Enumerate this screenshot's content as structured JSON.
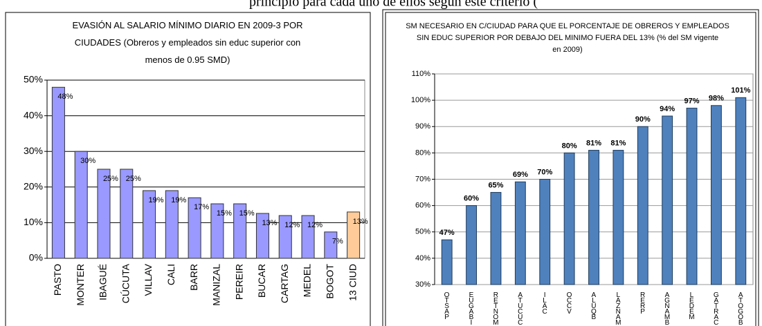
{
  "header_text": "principio para cada uno de ellos según este criterio (",
  "chart_data": [
    {
      "type": "bar",
      "title": "EVASIÓN AL SALARIO MÍNIMO DIARIO EN 2009-3  POR CIUDADES (Obreros y empleados sin educ superior con menos de 0.95 SMD)",
      "categories": [
        "PASTO",
        "MONTER",
        "IBAGUÉ",
        "CÚCUTA",
        "VILLAV",
        "CALI",
        "BARR",
        "MANIZAL",
        "PEREIR",
        "BUCAR",
        "CARTAG",
        "MEDEL",
        "BOGOT",
        "13 CIUD"
      ],
      "values": [
        48,
        30,
        25,
        25,
        19,
        19,
        17,
        15.3,
        15.3,
        12.6,
        12,
        12,
        7.4,
        13
      ],
      "value_labels": [
        "48%",
        "30%",
        "25%",
        "25%",
        "19%",
        "19%",
        "17%",
        "15%",
        "15%",
        "13%",
        "12%",
        "12%",
        "7%",
        "13%"
      ],
      "colors": [
        "#9999ff",
        "#9999ff",
        "#9999ff",
        "#9999ff",
        "#9999ff",
        "#9999ff",
        "#9999ff",
        "#9999ff",
        "#9999ff",
        "#9999ff",
        "#9999ff",
        "#9999ff",
        "#9999ff",
        "#ffcc99"
      ],
      "ylim": [
        0,
        50
      ],
      "yticks": [
        {
          "value": 0,
          "label": "0%"
        },
        {
          "value": 10,
          "label": "10%"
        },
        {
          "value": 20,
          "label": "20%"
        },
        {
          "value": 30,
          "label": "30%"
        },
        {
          "value": 40,
          "label": "40%"
        },
        {
          "value": 50,
          "label": "50%"
        }
      ],
      "grid": true
    },
    {
      "type": "bar",
      "title": "SM NECESARIO EN C/CIUDAD  PARA QUE EL PORCENTAJE DE OBREROS Y EMPLEADOS SIN  EDUC SUPERIOR  POR DEBAJO DEL MINIMO FUERA DEL 13% (% del SM vigente en 2009)",
      "categories": [
        "OTSAP",
        "EUGABI",
        "RETNOM",
        "ATUCUC",
        "ILAC",
        "OCCV",
        "ALUQB",
        "LAZNAM",
        "RERP",
        "AGNAMB",
        "LEDEM",
        "GATRAC",
        "ATOGOB"
      ],
      "values": [
        47,
        60,
        65,
        69,
        70,
        80,
        81,
        81,
        90,
        94,
        97,
        98,
        101
      ],
      "value_labels": [
        "47%",
        "60%",
        "65%",
        "69%",
        "70%",
        "80%",
        "81%",
        "81%",
        "90%",
        "94%",
        "97%",
        "98%",
        "101%"
      ],
      "color": "#4f81bd",
      "ylim": [
        30,
        110
      ],
      "yticks": [
        {
          "value": 30,
          "label": "30%"
        },
        {
          "value": 40,
          "label": "40%"
        },
        {
          "value": 50,
          "label": "50%"
        },
        {
          "value": 60,
          "label": "60%"
        },
        {
          "value": 70,
          "label": "70%"
        },
        {
          "value": 80,
          "label": "80%"
        },
        {
          "value": 90,
          "label": "90%"
        },
        {
          "value": 100,
          "label": "100%"
        },
        {
          "value": 110,
          "label": "110%"
        }
      ],
      "grid": true
    }
  ]
}
